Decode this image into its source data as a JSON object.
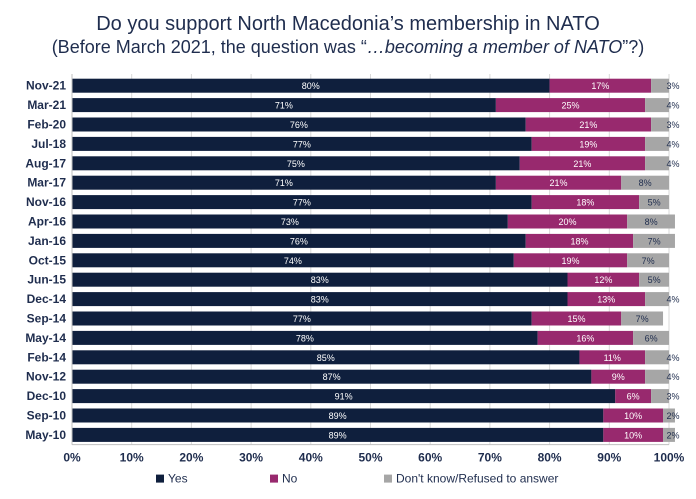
{
  "chart_data": {
    "type": "bar",
    "orientation": "horizontal",
    "stacked": true,
    "title": "Do you support North Macedonia’s membership in NATO",
    "subtitle_prefix": "(Before March 2021, the question was “",
    "subtitle_italic": "…becoming a member of NATO",
    "subtitle_suffix": "”?)",
    "categories": [
      "Nov-21",
      "Mar-21",
      "Feb-20",
      "Jul-18",
      "Aug-17",
      "Mar-17",
      "Nov-16",
      "Apr-16",
      "Jan-16",
      "Oct-15",
      "Jun-15",
      "Dec-14",
      "Sep-14",
      "May-14",
      "Feb-14",
      "Nov-12",
      "Dec-10",
      "Sep-10",
      "May-10"
    ],
    "series": [
      {
        "name": "Yes",
        "color": "#0f1f3d",
        "label_color": "#ffffff",
        "values": [
          80,
          71,
          76,
          77,
          75,
          71,
          77,
          73,
          76,
          74,
          83,
          83,
          77,
          78,
          85,
          87,
          91,
          89,
          89
        ]
      },
      {
        "name": "No",
        "color": "#98296e",
        "label_color": "#ffffff",
        "values": [
          17,
          25,
          21,
          19,
          21,
          21,
          18,
          20,
          18,
          19,
          12,
          13,
          15,
          16,
          11,
          9,
          6,
          10,
          10
        ]
      },
      {
        "name": "Don't know/Refused to answer",
        "color": "#a6a6a6",
        "label_color": "#1f2d4e",
        "values": [
          3,
          4,
          3,
          4,
          4,
          8,
          5,
          8,
          7,
          7,
          5,
          4,
          7,
          6,
          4,
          4,
          3,
          2,
          2
        ]
      }
    ],
    "xlim": [
      0,
      100
    ],
    "xticks": [
      "0%",
      "10%",
      "20%",
      "30%",
      "40%",
      "50%",
      "60%",
      "70%",
      "80%",
      "90%",
      "100%"
    ],
    "grid": true,
    "legend_position": "bottom"
  }
}
